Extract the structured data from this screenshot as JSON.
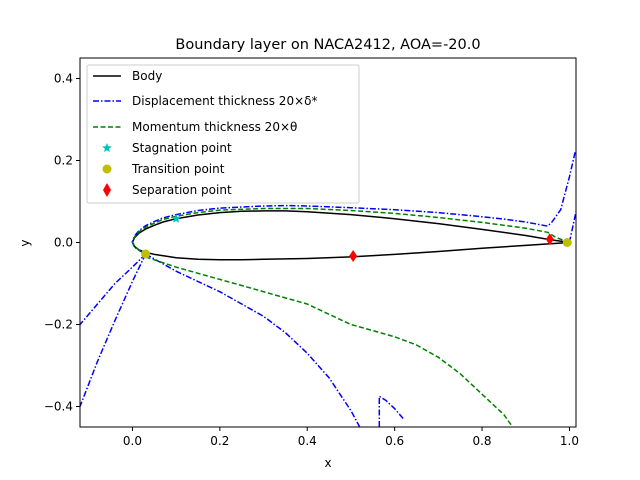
{
  "chart_data": {
    "type": "line",
    "title": "Boundary layer on NACA2412, AOA=-20.0",
    "xlabel": "x",
    "ylabel": "y",
    "xlim": [
      -0.12,
      1.015
    ],
    "ylim": [
      -0.45,
      0.45
    ],
    "xticks": [
      0.0,
      0.2,
      0.4,
      0.6,
      0.8,
      1.0
    ],
    "xtick_labels": [
      "0.0",
      "0.2",
      "0.4",
      "0.6",
      "0.8",
      "1.0"
    ],
    "yticks": [
      -0.4,
      -0.2,
      0.0,
      0.2,
      0.4
    ],
    "ytick_labels": [
      "−0.4",
      "−0.2",
      "0.0",
      "0.2",
      "0.4"
    ],
    "grid": false,
    "legend_position": "top-left",
    "legend": [
      {
        "label": "Body",
        "style": "solid",
        "color": "#000000"
      },
      {
        "label": "Displacement thickness 20×δ*",
        "style": "dashdot",
        "color": "#0000ff"
      },
      {
        "label": "Momentum thickness 20×θ",
        "style": "dashed",
        "color": "#008000"
      },
      {
        "label": "Stagnation point",
        "marker": "star",
        "color": "#00bfbf"
      },
      {
        "label": "Transition point",
        "marker": "circle",
        "color": "#bfbf00"
      },
      {
        "label": "Separation point",
        "marker": "diamond",
        "color": "#ff0000"
      }
    ],
    "series": [
      {
        "name": "Body",
        "style": "solid",
        "color": "#000000",
        "x": [
          1.0,
          0.95,
          0.9,
          0.8,
          0.7,
          0.6,
          0.5,
          0.4,
          0.35,
          0.3,
          0.25,
          0.2,
          0.15,
          0.1,
          0.07,
          0.05,
          0.03,
          0.015,
          0.005,
          0.0,
          0.005,
          0.015,
          0.03,
          0.05,
          0.08,
          0.1,
          0.15,
          0.2,
          0.25,
          0.3,
          0.4,
          0.5,
          0.6,
          0.7,
          0.8,
          0.9,
          1.0
        ],
        "y": [
          0.0,
          0.008,
          0.017,
          0.032,
          0.046,
          0.058,
          0.068,
          0.075,
          0.077,
          0.077,
          0.076,
          0.073,
          0.067,
          0.058,
          0.05,
          0.042,
          0.033,
          0.023,
          0.012,
          0.0,
          -0.01,
          -0.018,
          -0.024,
          -0.029,
          -0.034,
          -0.037,
          -0.041,
          -0.042,
          -0.042,
          -0.041,
          -0.039,
          -0.035,
          -0.029,
          -0.022,
          -0.014,
          -0.007,
          0.0
        ]
      },
      {
        "name": "Displacement thickness 20×δ* (upper)",
        "style": "dashdot",
        "color": "#0000ff",
        "x": [
          1.013,
          1.0,
          0.98,
          0.96,
          0.95,
          0.9,
          0.85,
          0.8,
          0.7,
          0.6,
          0.5,
          0.4,
          0.35,
          0.3,
          0.2,
          0.15,
          0.1,
          0.07,
          0.05,
          0.03,
          0.015,
          0.005,
          0.0,
          0.003,
          0.01,
          0.02,
          0.03
        ],
        "y": [
          0.22,
          0.16,
          0.08,
          0.05,
          0.04,
          0.05,
          0.057,
          0.063,
          0.073,
          0.08,
          0.085,
          0.089,
          0.09,
          0.089,
          0.084,
          0.078,
          0.068,
          0.06,
          0.051,
          0.041,
          0.029,
          0.016,
          0.002,
          -0.008,
          -0.016,
          -0.022,
          -0.028
        ]
      },
      {
        "name": "Displacement thickness 20×δ* (lower, outer)",
        "style": "dashdot",
        "color": "#0000ff",
        "x": [
          0.03,
          0.0,
          -0.04,
          -0.08,
          -0.12
        ],
        "y": [
          -0.028,
          -0.06,
          -0.1,
          -0.15,
          -0.2
        ]
      },
      {
        "name": "Displacement thickness 20×δ* (lower, inner)",
        "style": "dashdot",
        "color": "#0000ff",
        "x": [
          0.03,
          0.0,
          -0.04,
          -0.08,
          -0.12
        ],
        "y": [
          -0.028,
          -0.095,
          -0.19,
          -0.29,
          -0.4
        ]
      },
      {
        "name": "Displacement thickness 20×δ* (lower surface)",
        "style": "dashdot",
        "color": "#0000ff",
        "x": [
          0.03,
          0.1,
          0.15,
          0.2,
          0.25,
          0.3,
          0.35,
          0.4,
          0.45,
          0.5,
          0.52
        ],
        "y": [
          -0.028,
          -0.07,
          -0.095,
          -0.12,
          -0.15,
          -0.18,
          -0.22,
          -0.27,
          -0.33,
          -0.41,
          -0.45
        ]
      },
      {
        "name": "Displacement thickness 20×δ* (lower trailing branch)",
        "style": "dashdot",
        "color": "#0000ff",
        "x": [
          0.565,
          0.565,
          0.58,
          0.6,
          0.62
        ],
        "y": [
          -0.45,
          -0.375,
          -0.385,
          -0.405,
          -0.43
        ]
      },
      {
        "name": "Displacement thickness 20×δ* (TE)",
        "style": "dashdot",
        "color": "#0000ff",
        "x": [
          1.0,
          1.008,
          1.015
        ],
        "y": [
          0.0,
          0.04,
          0.075
        ]
      },
      {
        "name": "Momentum thickness 20×θ (upper)",
        "style": "dashed",
        "color": "#008000",
        "x": [
          1.0,
          0.97,
          0.95,
          0.9,
          0.8,
          0.7,
          0.6,
          0.5,
          0.4,
          0.3,
          0.2,
          0.15,
          0.1,
          0.07,
          0.05,
          0.03,
          0.015,
          0.005,
          0.0,
          0.005,
          0.015,
          0.03
        ],
        "y": [
          0.0,
          0.012,
          0.025,
          0.035,
          0.049,
          0.061,
          0.071,
          0.078,
          0.083,
          0.083,
          0.079,
          0.073,
          0.064,
          0.056,
          0.047,
          0.037,
          0.026,
          0.014,
          0.002,
          -0.009,
          -0.019,
          -0.028
        ]
      },
      {
        "name": "Momentum thickness 20×θ (lower)",
        "style": "dashed",
        "color": "#008000",
        "x": [
          0.03,
          0.1,
          0.15,
          0.2,
          0.25,
          0.3,
          0.35,
          0.4,
          0.45,
          0.5,
          0.55,
          0.6,
          0.65,
          0.7,
          0.75,
          0.8,
          0.85,
          0.87
        ],
        "y": [
          -0.035,
          -0.06,
          -0.075,
          -0.09,
          -0.105,
          -0.12,
          -0.135,
          -0.15,
          -0.175,
          -0.2,
          -0.215,
          -0.23,
          -0.25,
          -0.28,
          -0.32,
          -0.37,
          -0.42,
          -0.45
        ]
      }
    ],
    "points": [
      {
        "name": "Stagnation point",
        "marker": "star",
        "color": "#00bfbf",
        "x": [
          0.1
        ],
        "y": [
          0.058
        ]
      },
      {
        "name": "Transition point",
        "marker": "circle",
        "color": "#bfbf00",
        "x": [
          0.03,
          0.995
        ],
        "y": [
          -0.028,
          0.0
        ]
      },
      {
        "name": "Separation point",
        "marker": "diamond",
        "color": "#ff0000",
        "x": [
          0.505,
          0.955
        ],
        "y": [
          -0.033,
          0.008
        ]
      }
    ]
  }
}
